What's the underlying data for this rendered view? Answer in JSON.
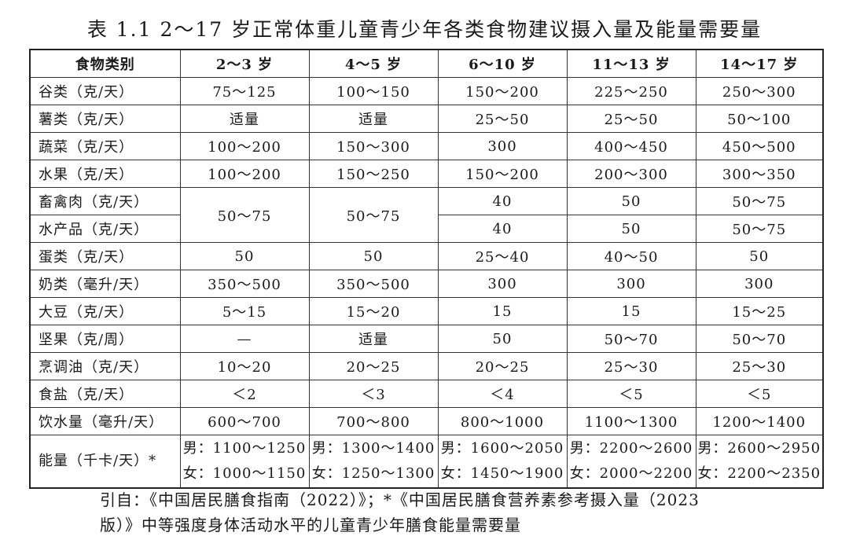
{
  "title": "表 1.1 2～17 岁正常体重儿童青少年各类食物建议摄入量及能量需要量",
  "headers": [
    "食物类别",
    "2～3 岁",
    "4～5 岁",
    "6～10 岁",
    "11～13 岁",
    "14～17 岁"
  ],
  "rows": [
    {
      "cat": "谷类（克/天）",
      "v": [
        "75～125",
        "100～150",
        "150～200",
        "225～250",
        "250～300"
      ]
    },
    {
      "cat": "薯类（克/天）",
      "v": [
        "适量",
        "适量",
        "25～50",
        "25～50",
        "50～100"
      ]
    },
    {
      "cat": "蔬菜（克/天）",
      "v": [
        "100～200",
        "150～300",
        "300",
        "400～450",
        "450～500"
      ]
    },
    {
      "cat": "水果（克/天）",
      "v": [
        "100～200",
        "150～250",
        "150～200",
        "200～300",
        "300～350"
      ]
    },
    {
      "cat": "畜禽肉（克/天）",
      "v": [
        "50～75",
        "50～75",
        "40",
        "50",
        "50～75"
      ]
    },
    {
      "cat": "水产品（克/天）",
      "v": [
        "",
        "",
        "40",
        "50",
        "50～75"
      ]
    },
    {
      "cat": "蛋类（克/天）",
      "v": [
        "50",
        "50",
        "25～40",
        "40～50",
        "50"
      ]
    },
    {
      "cat": "奶类（毫升/天）",
      "v": [
        "350～500",
        "350～500",
        "300",
        "300",
        "300"
      ]
    },
    {
      "cat": "大豆（克/天）",
      "v": [
        "5～15",
        "15～20",
        "15",
        "15",
        "15～25"
      ]
    },
    {
      "cat": "坚果（克/周）",
      "v": [
        "—",
        "适量",
        "50",
        "50～70",
        "50～70"
      ]
    },
    {
      "cat": "烹调油（克/天）",
      "v": [
        "10～20",
        "20～25",
        "20～25",
        "25～30",
        "25～30"
      ]
    },
    {
      "cat": "食盐（克/天）",
      "v": [
        "＜2",
        "＜3",
        "＜4",
        "＜5",
        "＜5"
      ]
    },
    {
      "cat": "饮水量（毫升/天）",
      "v": [
        "600～700",
        "700～800",
        "800～1000",
        "1100～1300",
        "1200～1400"
      ]
    }
  ],
  "energy": {
    "cat": "能量（千卡/天）*",
    "male": [
      "男：1100～1250",
      "男：1300～1400",
      "男：1600～2050",
      "男：2200～2600",
      "男：2600～2950"
    ],
    "female": [
      "女：1000～1150",
      "女：1250～1300",
      "女：1450～1900",
      "女：2000～2200",
      "女：2200～2350"
    ]
  },
  "footnote": {
    "line1": "引自：《中国居民膳食指南（2022）》；*《中国居民膳食营养素参考摄入量（2023",
    "line2": "版）》中等强度身体活动水平的儿童青少年膳食能量需要量"
  }
}
